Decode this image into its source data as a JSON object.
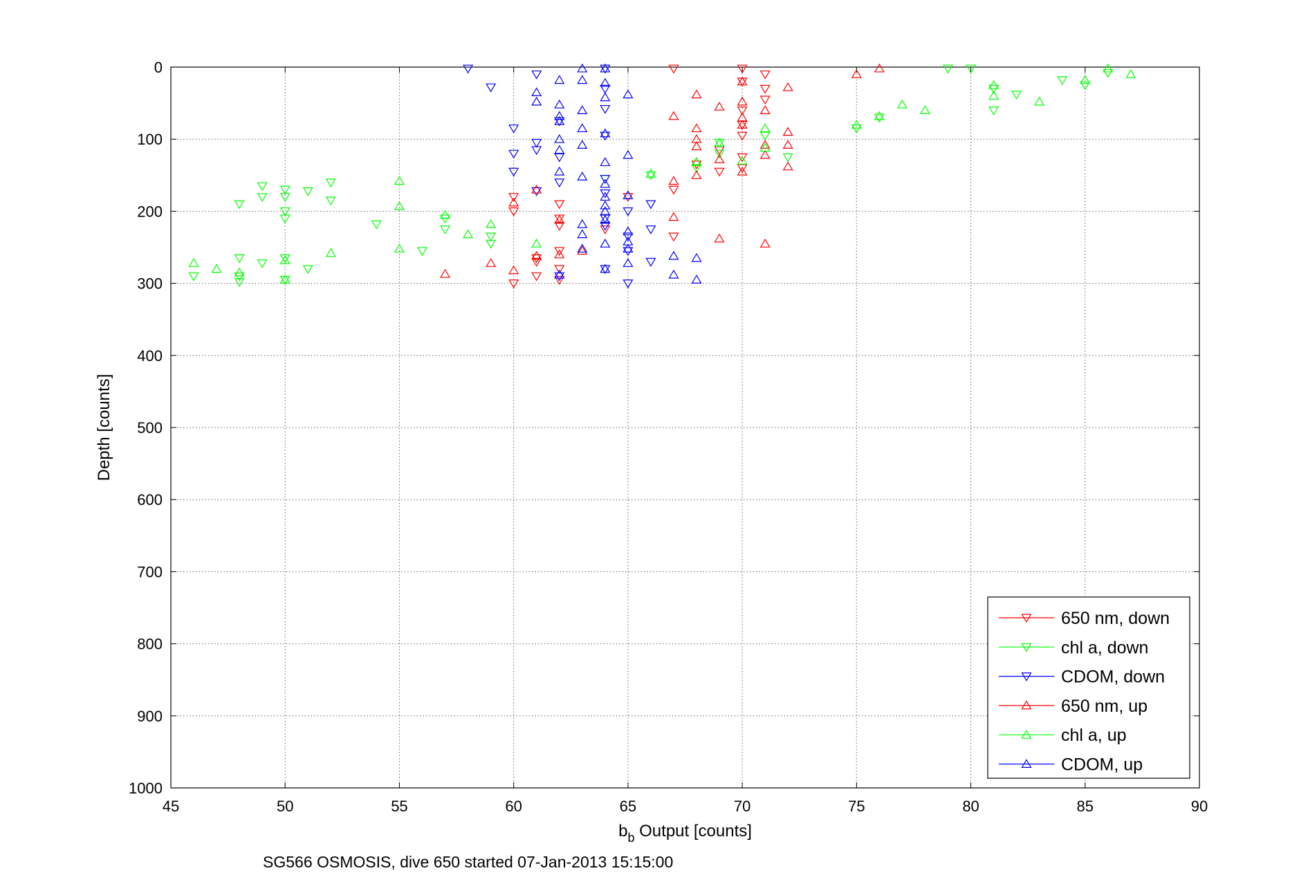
{
  "chart_data": {
    "type": "scatter",
    "xlabel_main": "b",
    "xlabel_sub": "b",
    "xlabel_rest": " Output [counts]",
    "ylabel": "Depth [counts]",
    "caption": "SG566 OSMOSIS, dive 650 started 07-Jan-2013 15:15:00",
    "xlim": [
      45,
      90
    ],
    "ylim": [
      0,
      1000
    ],
    "y_reversed": true,
    "grid": true,
    "legend_position": "bottom-right",
    "xticks": [
      "45",
      "50",
      "55",
      "60",
      "65",
      "70",
      "75",
      "80",
      "85",
      "90"
    ],
    "yticks": [
      "0",
      "100",
      "200",
      "300",
      "400",
      "500",
      "600",
      "700",
      "800",
      "900",
      "1000"
    ],
    "series": [
      {
        "name": "650 nm, down",
        "color": "#ff0000",
        "marker": "triangle-down",
        "points": [
          [
            67,
            2
          ],
          [
            70,
            2
          ],
          [
            71,
            10
          ],
          [
            70,
            20
          ],
          [
            71,
            30
          ],
          [
            71,
            45
          ],
          [
            70,
            60
          ],
          [
            70,
            80
          ],
          [
            70,
            95
          ],
          [
            69,
            115
          ],
          [
            70,
            125
          ],
          [
            68,
            135
          ],
          [
            69,
            145
          ],
          [
            70,
            140
          ],
          [
            67,
            170
          ],
          [
            65,
            180
          ],
          [
            60,
            180
          ],
          [
            62,
            190
          ],
          [
            60,
            200
          ],
          [
            62,
            210
          ],
          [
            62,
            220
          ],
          [
            64,
            225
          ],
          [
            67,
            235
          ],
          [
            62,
            255
          ],
          [
            61,
            265
          ],
          [
            61,
            270
          ],
          [
            62,
            280
          ],
          [
            61,
            290
          ],
          [
            60,
            300
          ],
          [
            62,
            295
          ]
        ]
      },
      {
        "name": "chl a, down",
        "color": "#00ff00",
        "marker": "triangle-down",
        "points": [
          [
            79,
            2
          ],
          [
            80,
            2
          ],
          [
            86,
            8
          ],
          [
            85,
            25
          ],
          [
            81,
            30
          ],
          [
            82,
            38
          ],
          [
            84,
            18
          ],
          [
            81,
            60
          ],
          [
            76,
            70
          ],
          [
            75,
            85
          ],
          [
            71,
            95
          ],
          [
            69,
            105
          ],
          [
            72,
            125
          ],
          [
            69,
            120
          ],
          [
            68,
            140
          ],
          [
            66,
            150
          ],
          [
            64,
            155
          ],
          [
            52,
            160
          ],
          [
            49,
            165
          ],
          [
            50,
            170
          ],
          [
            51,
            172
          ],
          [
            49,
            180
          ],
          [
            50,
            180
          ],
          [
            52,
            185
          ],
          [
            48,
            190
          ],
          [
            50,
            200
          ],
          [
            50,
            210
          ],
          [
            54,
            218
          ],
          [
            57,
            210
          ],
          [
            57,
            225
          ],
          [
            59,
            235
          ],
          [
            59,
            245
          ],
          [
            56,
            255
          ],
          [
            48,
            265
          ],
          [
            50,
            265
          ],
          [
            49,
            272
          ],
          [
            51,
            280
          ],
          [
            46,
            290
          ],
          [
            48,
            290
          ],
          [
            48,
            298
          ],
          [
            50,
            295
          ]
        ]
      },
      {
        "name": "CDOM, down",
        "color": "#0000ff",
        "marker": "triangle-down",
        "points": [
          [
            58,
            2
          ],
          [
            64,
            2
          ],
          [
            61,
            10
          ],
          [
            59,
            28
          ],
          [
            64,
            30
          ],
          [
            64,
            58
          ],
          [
            62,
            75
          ],
          [
            60,
            85
          ],
          [
            64,
            95
          ],
          [
            61,
            105
          ],
          [
            61,
            115
          ],
          [
            60,
            120
          ],
          [
            62,
            125
          ],
          [
            60,
            145
          ],
          [
            62,
            160
          ],
          [
            64,
            155
          ],
          [
            61,
            172
          ],
          [
            64,
            175
          ],
          [
            66,
            190
          ],
          [
            65,
            200
          ],
          [
            64,
            210
          ],
          [
            64,
            220
          ],
          [
            66,
            225
          ],
          [
            65,
            235
          ],
          [
            65,
            255
          ],
          [
            66,
            270
          ],
          [
            64,
            280
          ],
          [
            62,
            290
          ],
          [
            65,
            300
          ]
        ]
      },
      {
        "name": "650 nm, up",
        "color": "#ff0000",
        "marker": "triangle-up",
        "points": [
          [
            76,
            2
          ],
          [
            75,
            10
          ],
          [
            70,
            20
          ],
          [
            72,
            28
          ],
          [
            68,
            38
          ],
          [
            70,
            48
          ],
          [
            69,
            55
          ],
          [
            71,
            60
          ],
          [
            67,
            68
          ],
          [
            70,
            70
          ],
          [
            70,
            80
          ],
          [
            68,
            85
          ],
          [
            72,
            90
          ],
          [
            68,
            100
          ],
          [
            71,
            108
          ],
          [
            72,
            108
          ],
          [
            68,
            110
          ],
          [
            71,
            122
          ],
          [
            69,
            128
          ],
          [
            68,
            132
          ],
          [
            72,
            138
          ],
          [
            70,
            145
          ],
          [
            68,
            150
          ],
          [
            67,
            158
          ],
          [
            61,
            170
          ],
          [
            60,
            188
          ],
          [
            67,
            208
          ],
          [
            62,
            212
          ],
          [
            57,
            287
          ],
          [
            59,
            272
          ],
          [
            60,
            282
          ],
          [
            62,
            260
          ],
          [
            61,
            262
          ],
          [
            63,
            255
          ],
          [
            69,
            238
          ],
          [
            71,
            245
          ]
        ]
      },
      {
        "name": "chl a, up",
        "color": "#00ff00",
        "marker": "triangle-up",
        "points": [
          [
            86,
            2
          ],
          [
            87,
            10
          ],
          [
            85,
            18
          ],
          [
            81,
            25
          ],
          [
            81,
            40
          ],
          [
            83,
            48
          ],
          [
            77,
            52
          ],
          [
            78,
            60
          ],
          [
            76,
            68
          ],
          [
            75,
            80
          ],
          [
            71,
            85
          ],
          [
            71,
            112
          ],
          [
            70,
            130
          ],
          [
            69,
            105
          ],
          [
            68,
            132
          ],
          [
            66,
            148
          ],
          [
            55,
            158
          ],
          [
            55,
            193
          ],
          [
            57,
            205
          ],
          [
            58,
            232
          ],
          [
            59,
            218
          ],
          [
            55,
            252
          ],
          [
            46,
            272
          ],
          [
            47,
            280
          ],
          [
            48,
            285
          ],
          [
            50,
            268
          ],
          [
            52,
            258
          ],
          [
            50,
            295
          ],
          [
            61,
            245
          ]
        ]
      },
      {
        "name": "CDOM, up",
        "color": "#0000ff",
        "marker": "triangle-up",
        "points": [
          [
            63,
            2
          ],
          [
            64,
            2
          ],
          [
            62,
            18
          ],
          [
            63,
            18
          ],
          [
            64,
            22
          ],
          [
            61,
            35
          ],
          [
            64,
            42
          ],
          [
            65,
            38
          ],
          [
            61,
            48
          ],
          [
            62,
            52
          ],
          [
            63,
            60
          ],
          [
            62,
            68
          ],
          [
            62,
            75
          ],
          [
            63,
            85
          ],
          [
            64,
            92
          ],
          [
            62,
            100
          ],
          [
            63,
            108
          ],
          [
            62,
            115
          ],
          [
            65,
            122
          ],
          [
            64,
            132
          ],
          [
            62,
            145
          ],
          [
            63,
            152
          ],
          [
            64,
            162
          ],
          [
            64,
            180
          ],
          [
            65,
            178
          ],
          [
            64,
            192
          ],
          [
            64,
            200
          ],
          [
            63,
            218
          ],
          [
            64,
            212
          ],
          [
            65,
            228
          ],
          [
            63,
            232
          ],
          [
            64,
            245
          ],
          [
            65,
            242
          ],
          [
            65,
            252
          ],
          [
            63,
            252
          ],
          [
            65,
            272
          ],
          [
            64,
            280
          ],
          [
            67,
            262
          ],
          [
            68,
            265
          ],
          [
            67,
            288
          ],
          [
            68,
            295
          ],
          [
            62,
            288
          ]
        ]
      }
    ]
  }
}
